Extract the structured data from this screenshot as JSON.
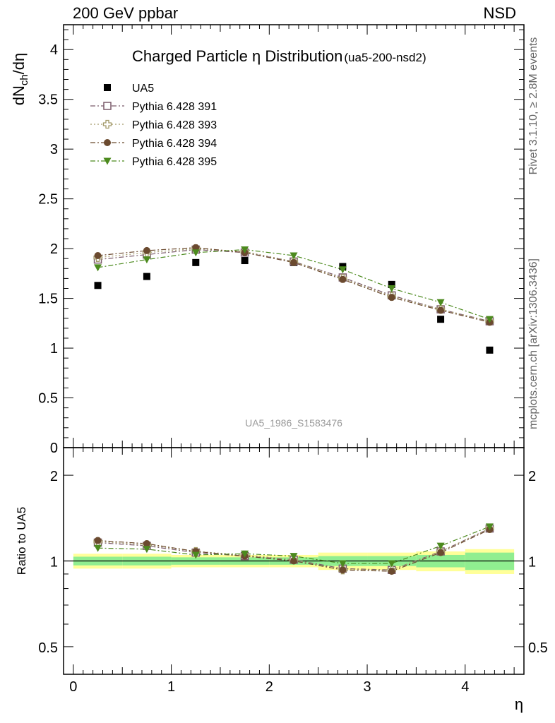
{
  "header": {
    "top_left": "200 GeV ppbar",
    "top_right": "NSD",
    "side_rivet": "Rivet 3.1.10, ≥ 2.8M events",
    "side_mcplots": "mcplots.cern.ch [arXiv:1306.3436]"
  },
  "chart_data": [
    {
      "type": "scatter",
      "title": "Charged Particle η Distribution",
      "subtitle": "(ua5-200-nsd2)",
      "watermark": "UA5_1986_S1583476",
      "ylabel": "dN",
      "ylabel_sub": "ch",
      "ylabel_tail": "/dη",
      "xlim": [
        -0.1,
        4.6
      ],
      "ylim": [
        0,
        4.25
      ],
      "yticks": [
        "0",
        "0.5",
        "1",
        "1.5",
        "2",
        "2.5",
        "3",
        "3.5",
        "4"
      ],
      "x": [
        0.25,
        0.75,
        1.25,
        1.75,
        2.25,
        2.75,
        3.25,
        3.75,
        4.25
      ],
      "series": [
        {
          "name": "UA5",
          "marker": "square-filled",
          "color": "#000000",
          "line": "none",
          "values": [
            1.63,
            1.72,
            1.86,
            1.88,
            1.86,
            1.82,
            1.64,
            1.29,
            0.98
          ]
        },
        {
          "name": "Pythia 6.428 391",
          "marker": "square-open",
          "color": "#7a5a6a",
          "line": "dashdot",
          "values": [
            1.89,
            1.94,
            1.99,
            1.96,
            1.87,
            1.71,
            1.53,
            1.39,
            1.27
          ]
        },
        {
          "name": "Pythia 6.428 393",
          "marker": "cross-open",
          "color": "#a39a6a",
          "line": "dot",
          "values": [
            1.91,
            1.96,
            2.0,
            1.97,
            1.87,
            1.7,
            1.52,
            1.39,
            1.27
          ]
        },
        {
          "name": "Pythia 6.428 394",
          "marker": "circle-filled",
          "color": "#6b4a2f",
          "line": "dashdot",
          "values": [
            1.93,
            1.98,
            2.01,
            1.96,
            1.86,
            1.69,
            1.51,
            1.38,
            1.26
          ]
        },
        {
          "name": "Pythia 6.428 395",
          "marker": "triangle-down-filled",
          "color": "#4c8a1e",
          "line": "dashdot",
          "values": [
            1.81,
            1.89,
            1.96,
            1.99,
            1.93,
            1.79,
            1.6,
            1.46,
            1.29
          ]
        }
      ]
    },
    {
      "type": "scatter",
      "ylabel": "Ratio to UA5",
      "xlabel": "η",
      "scale": "log",
      "xlim": [
        -0.1,
        4.6
      ],
      "ylim": [
        0.4,
        2.5
      ],
      "xticks": [
        "0",
        "1",
        "2",
        "3",
        "4"
      ],
      "yticks": [
        "0.5",
        "1",
        "2"
      ],
      "x": [
        0.25,
        0.75,
        1.25,
        1.75,
        2.25,
        2.75,
        3.25,
        3.75,
        4.25
      ],
      "bands": {
        "x_edges": [
          0,
          0.5,
          1.0,
          1.5,
          2.0,
          2.5,
          3.0,
          3.5,
          4.0,
          4.5
        ],
        "outer": [
          0.06,
          0.06,
          0.05,
          0.05,
          0.05,
          0.07,
          0.07,
          0.08,
          0.1
        ],
        "inner": [
          0.035,
          0.035,
          0.03,
          0.03,
          0.03,
          0.04,
          0.04,
          0.05,
          0.07
        ],
        "outer_color": "#ffff99",
        "inner_color": "#90ee90"
      },
      "series": [
        {
          "name": "Pythia 6.428 391",
          "values": [
            1.16,
            1.13,
            1.07,
            1.04,
            1.01,
            0.94,
            0.93,
            1.08,
            1.3
          ]
        },
        {
          "name": "Pythia 6.428 393",
          "values": [
            1.17,
            1.14,
            1.08,
            1.05,
            1.01,
            0.93,
            0.93,
            1.08,
            1.3
          ]
        },
        {
          "name": "Pythia 6.428 394",
          "values": [
            1.18,
            1.15,
            1.08,
            1.04,
            1.0,
            0.93,
            0.92,
            1.07,
            1.29
          ]
        },
        {
          "name": "Pythia 6.428 395",
          "values": [
            1.11,
            1.1,
            1.05,
            1.06,
            1.04,
            0.98,
            0.98,
            1.13,
            1.32
          ]
        }
      ]
    }
  ]
}
